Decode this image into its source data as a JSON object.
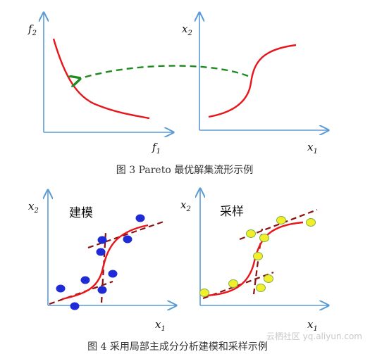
{
  "figure3": {
    "left_y_label": "f",
    "left_y_sub": "2",
    "left_x_label": "f",
    "left_x_sub": "1",
    "right_y_label": "x",
    "right_y_sub": "2",
    "right_x_label": "x",
    "right_x_sub": "1",
    "caption": "图 3  Pareto 最优解集流形示例"
  },
  "figure4": {
    "left_y_label": "x",
    "left_y_sub": "2",
    "left_x_label": "x",
    "left_x_sub": "1",
    "left_title": "建模",
    "right_y_label": "x",
    "right_y_sub": "2",
    "right_x_label": "x",
    "right_x_sub": "1",
    "right_title": "采样",
    "caption": "图 4  采用局部主成分分析建模和采样示例",
    "blue_color": "#1f2bd6",
    "yellow_color": "#f2ef2a"
  },
  "watermark": "云栖社区 yq.aliyun.com"
}
